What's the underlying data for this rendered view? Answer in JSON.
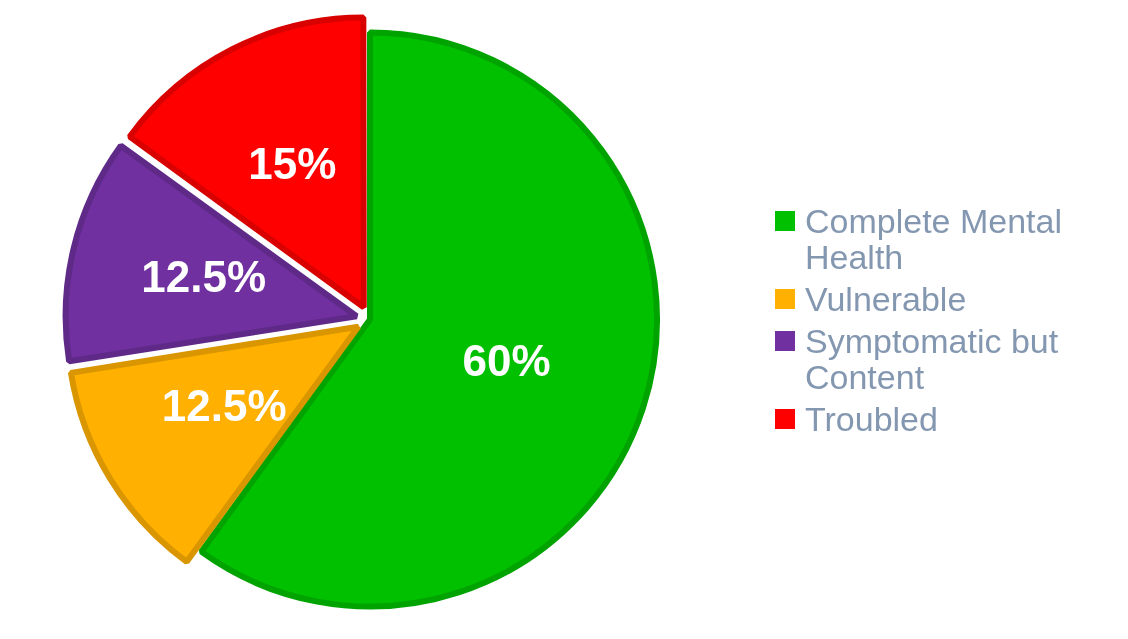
{
  "chart_data": {
    "type": "pie",
    "categories": [
      "Complete Mental Health",
      "Vulnerable",
      "Symptomatic but Content",
      "Troubled"
    ],
    "values": [
      60,
      12.5,
      12.5,
      15
    ],
    "colors": [
      "#00c000",
      "#ffb000",
      "#7030a0",
      "#ff0000"
    ],
    "value_labels": [
      "60%",
      "12.5%",
      "12.5%",
      "15%"
    ],
    "legend": "right"
  }
}
